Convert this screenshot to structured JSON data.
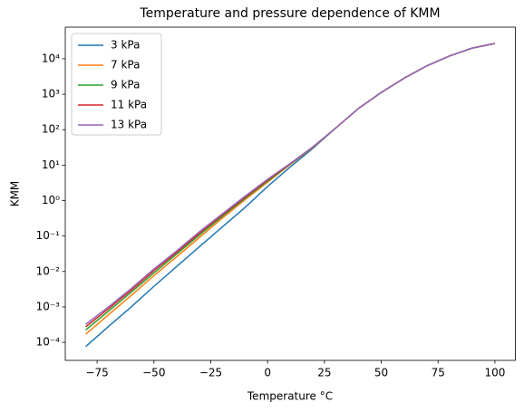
{
  "chart_data": {
    "type": "line",
    "title": "Temperature and pressure dependence of KMM",
    "xlabel": "Temperature °C",
    "ylabel": "KMM",
    "yscale": "log",
    "legend": "upper left",
    "x": [
      -80,
      -70,
      -60,
      -50,
      -40,
      -30,
      -20,
      -10,
      0,
      10,
      20,
      30,
      40,
      50,
      60,
      70,
      80,
      90,
      100
    ],
    "series": [
      {
        "name": "3 kPa",
        "color": "#1f77b4",
        "values": [
          7.6e-05,
          0.00028,
          0.001,
          0.0038,
          0.0138,
          0.05,
          0.178,
          0.63,
          2.5,
          8.9,
          30,
          112,
          398,
          1120,
          2820,
          6310,
          12000,
          20000,
          27000
        ]
      },
      {
        "name": "7 kPa",
        "color": "#ff7f0e",
        "values": [
          0.00017,
          0.0006,
          0.0021,
          0.0076,
          0.026,
          0.091,
          0.316,
          1.05,
          3.3,
          10.5,
          31.6,
          112,
          398,
          1120,
          2820,
          6310,
          12000,
          20000,
          27000
        ]
      },
      {
        "name": "9 kPa",
        "color": "#2ca02c",
        "values": [
          0.000224,
          0.00076,
          0.0026,
          0.0091,
          0.031,
          0.107,
          0.355,
          1.15,
          3.55,
          10.7,
          32.4,
          112,
          398,
          1120,
          2820,
          6310,
          12000,
          20000,
          27000
        ]
      },
      {
        "name": "11 kPa",
        "color": "#d62728",
        "values": [
          0.000275,
          0.00089,
          0.00295,
          0.0105,
          0.0347,
          0.12,
          0.39,
          1.23,
          3.8,
          11,
          33,
          112,
          398,
          1120,
          2820,
          6310,
          12000,
          20000,
          27000
        ]
      },
      {
        "name": "13 kPa",
        "color": "#9467bd",
        "values": [
          0.000324,
          0.001,
          0.0033,
          0.0117,
          0.038,
          0.132,
          0.417,
          1.32,
          4.0,
          11.2,
          33,
          112,
          398,
          1120,
          2820,
          6310,
          12000,
          20000,
          27000
        ]
      }
    ],
    "xlim": [
      -89,
      109
    ],
    "xticks": [
      {
        "value": -75,
        "label": "−75"
      },
      {
        "value": -50,
        "label": "−50"
      },
      {
        "value": -25,
        "label": "−25"
      },
      0,
      25,
      50,
      75,
      100
    ],
    "ylim": [
      3.1e-05,
      78000
    ],
    "yticks": [
      {
        "value": 0.0001,
        "label": "10⁻⁴"
      },
      {
        "value": 0.001,
        "label": "10⁻³"
      },
      {
        "value": 0.01,
        "label": "10⁻²"
      },
      {
        "value": 0.1,
        "label": "10⁻¹"
      },
      {
        "value": 1,
        "label": "10⁰"
      },
      {
        "value": 10,
        "label": "10¹"
      },
      {
        "value": 100,
        "label": "10²"
      },
      {
        "value": 1000,
        "label": "10³"
      },
      {
        "value": 10000,
        "label": "10⁴"
      }
    ]
  }
}
